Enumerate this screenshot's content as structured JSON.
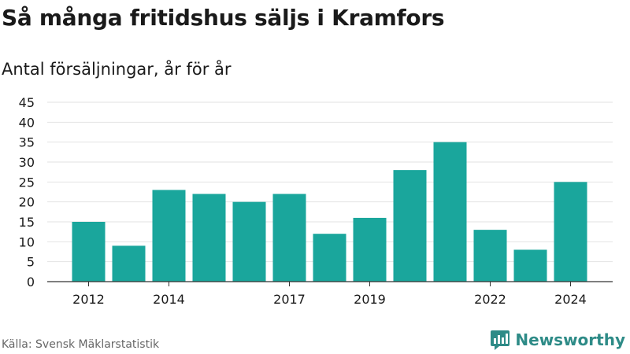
{
  "title": "Så många fritidshus säljs i Kramfors",
  "subtitle": "Antal försäljningar, år för år",
  "source": "Källa: Svensk Mäklarstatistik",
  "brand": {
    "name": "Newsworthy",
    "icon": "newsworthy-logo-icon"
  },
  "colors": {
    "bar": "#1aa69c",
    "grid": "#e2e2e2",
    "axis": "#333333",
    "brand": "#2e8b87"
  },
  "chart_data": {
    "type": "bar",
    "categories": [
      "2012",
      "2013",
      "2014",
      "2015",
      "2016",
      "2017",
      "2018",
      "2019",
      "2020",
      "2021",
      "2022",
      "2023",
      "2024"
    ],
    "values": [
      15,
      9,
      23,
      22,
      20,
      22,
      12,
      16,
      28,
      35,
      13,
      8,
      25
    ],
    "x_tick_labels": [
      "2012",
      "2014",
      "2017",
      "2019",
      "2022",
      "2024"
    ],
    "y_ticks": [
      0,
      5,
      10,
      15,
      20,
      25,
      30,
      35,
      40,
      45
    ],
    "ylim": [
      0,
      45
    ],
    "grid": true
  }
}
